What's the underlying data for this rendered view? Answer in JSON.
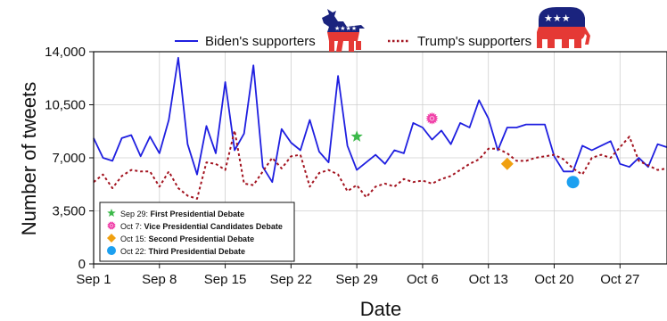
{
  "chart_data": {
    "type": "line",
    "xlabel": "Date",
    "ylabel": "Number of tweets",
    "ylim": [
      0,
      14000
    ],
    "yticks": [
      0,
      3500,
      7000,
      10500,
      14000
    ],
    "ytick_labels": [
      "0",
      "3,500",
      "7,000",
      "10,500",
      "14,000"
    ],
    "xlim": [
      0,
      61
    ],
    "xticks": [
      {
        "x": 0,
        "label": "Sep 1"
      },
      {
        "x": 7,
        "label": "Sep 8"
      },
      {
        "x": 14,
        "label": "Sep 15"
      },
      {
        "x": 21,
        "label": "Sep 22"
      },
      {
        "x": 28,
        "label": "Sep 29"
      },
      {
        "x": 35,
        "label": "Oct 6"
      },
      {
        "x": 42,
        "label": "Oct 13"
      },
      {
        "x": 49,
        "label": "Oct 20"
      },
      {
        "x": 56,
        "label": "Oct 27"
      }
    ],
    "grid": true,
    "legend_position": "top",
    "series": [
      {
        "name": "Biden's supporters",
        "color": "#1f1fe0",
        "style": "solid",
        "values": [
          8300,
          7000,
          6800,
          8300,
          8500,
          7100,
          8400,
          7300,
          9500,
          13600,
          7900,
          5900,
          9100,
          7300,
          12000,
          7500,
          8600,
          13100,
          6400,
          5400,
          8900,
          8000,
          7500,
          9500,
          7400,
          6700,
          12400,
          7800,
          6200,
          6700,
          7200,
          6600,
          7500,
          7300,
          9300,
          9000,
          8200,
          8800,
          7900,
          9300,
          9000,
          10800,
          9600,
          7500,
          9000,
          9000,
          9200,
          9200,
          9200,
          7100,
          6100,
          6100,
          7800,
          7500,
          7800,
          8100,
          6600,
          6400,
          7000,
          6400,
          7900,
          7700
        ]
      },
      {
        "name": "Trump's supporters",
        "color": "#a31420",
        "style": "dotted",
        "values": [
          5400,
          5900,
          5000,
          5800,
          6200,
          6100,
          6100,
          5100,
          6100,
          5000,
          4500,
          4300,
          6700,
          6600,
          6200,
          8800,
          5300,
          5200,
          6100,
          7000,
          6300,
          7100,
          7200,
          5100,
          6000,
          6200,
          5900,
          4800,
          5200,
          4400,
          5100,
          5300,
          5100,
          5600,
          5400,
          5500,
          5300,
          5600,
          5800,
          6200,
          6600,
          6900,
          7600,
          7600,
          7300,
          6800,
          6800,
          7000,
          7100,
          7200,
          6900,
          6300,
          5900,
          7000,
          7200,
          7000,
          7700,
          8400,
          6800,
          6500,
          6200,
          6300
        ]
      }
    ],
    "annotations": [
      {
        "x": 28,
        "y": 8400,
        "marker": "star",
        "color": "#3cb94a",
        "date": "Sep 29:",
        "label": "First Presidential Debate"
      },
      {
        "x": 36,
        "y": 9600,
        "marker": "burst",
        "color": "#f040a8",
        "date": "Oct 7:",
        "label": "Vice Presidential Candidates Debate"
      },
      {
        "x": 44,
        "y": 6600,
        "marker": "diamond",
        "color": "#f0a010",
        "date": "Oct 15:",
        "label": "Second Presidential Debate"
      },
      {
        "x": 51,
        "y": 5400,
        "marker": "circle",
        "color": "#1ca0f0",
        "date": "Oct 22:",
        "label": "Third Presidential Debate"
      }
    ]
  }
}
